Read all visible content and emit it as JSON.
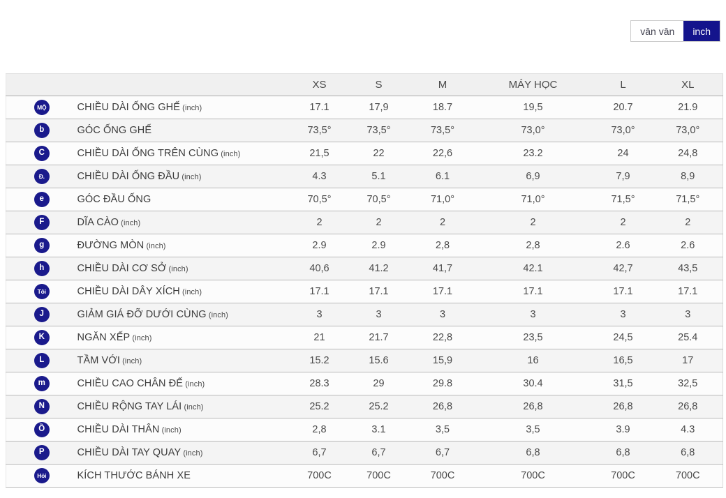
{
  "unit_toggle": {
    "options": [
      {
        "label": "vân vân",
        "selected": false
      },
      {
        "label": "inch",
        "selected": true
      }
    ]
  },
  "table": {
    "columns": [
      "XS",
      "S",
      "M",
      "MÁY HỌC",
      "L",
      "XL"
    ],
    "rows": [
      {
        "badge": "MỘ",
        "label": "CHIỀU DÀI ỐNG GHẾ",
        "unit": "(inch)",
        "values": [
          "17.1",
          "17,9",
          "18.7",
          "19,5",
          "20.7",
          "21.9"
        ]
      },
      {
        "badge": "b",
        "label": "GÓC ỐNG GHẾ",
        "unit": "",
        "values": [
          "73,5°",
          "73,5°",
          "73,5°",
          "73,0°",
          "73,0°",
          "73,0°"
        ]
      },
      {
        "badge": "C",
        "label": "CHIỀU DÀI ỐNG TRÊN CÙNG",
        "unit": "(inch)",
        "values": [
          "21,5",
          "22",
          "22,6",
          "23.2",
          "24",
          "24,8"
        ]
      },
      {
        "badge": "Đ.",
        "label": "CHIỀU DÀI ỐNG ĐẦU",
        "unit": "(inch)",
        "values": [
          "4.3",
          "5.1",
          "6.1",
          "6,9",
          "7,9",
          "8,9"
        ]
      },
      {
        "badge": "e",
        "label": "GÓC ĐẦU ỐNG",
        "unit": "",
        "values": [
          "70,5°",
          "70,5°",
          "71,0°",
          "71,0°",
          "71,5°",
          "71,5°"
        ]
      },
      {
        "badge": "F",
        "label": "DĨA CÀO",
        "unit": "(inch)",
        "values": [
          "2",
          "2",
          "2",
          "2",
          "2",
          "2"
        ]
      },
      {
        "badge": "g",
        "label": "ĐƯỜNG MÒN",
        "unit": "(inch)",
        "values": [
          "2.9",
          "2.9",
          "2,8",
          "2,8",
          "2.6",
          "2.6"
        ]
      },
      {
        "badge": "h",
        "label": "CHIỀU DÀI CƠ SỞ",
        "unit": "(inch)",
        "values": [
          "40,6",
          "41.2",
          "41,7",
          "42.1",
          "42,7",
          "43,5"
        ]
      },
      {
        "badge": "Tôi",
        "label": "CHIỀU DÀI DÂY XÍCH",
        "unit": "(inch)",
        "values": [
          "17.1",
          "17.1",
          "17.1",
          "17.1",
          "17.1",
          "17.1"
        ]
      },
      {
        "badge": "J",
        "label": "GIẢM GIÁ ĐỠ DƯỚI CÙNG",
        "unit": "(inch)",
        "values": [
          "3",
          "3",
          "3",
          "3",
          "3",
          "3"
        ]
      },
      {
        "badge": "K",
        "label": "NGĂN XẾP",
        "unit": "(inch)",
        "values": [
          "21",
          "21.7",
          "22,8",
          "23,5",
          "24,5",
          "25.4"
        ]
      },
      {
        "badge": "L",
        "label": "TẦM VỚI",
        "unit": "(inch)",
        "values": [
          "15.2",
          "15.6",
          "15,9",
          "16",
          "16,5",
          "17"
        ]
      },
      {
        "badge": "m",
        "label": "CHIỀU CAO CHÂN ĐẾ",
        "unit": "(inch)",
        "values": [
          "28.3",
          "29",
          "29.8",
          "30.4",
          "31,5",
          "32,5"
        ]
      },
      {
        "badge": "N",
        "label": "CHIỀU RỘNG TAY LÁI",
        "unit": "(inch)",
        "values": [
          "25.2",
          "25.2",
          "26,8",
          "26,8",
          "26,8",
          "26,8"
        ]
      },
      {
        "badge": "Ồ",
        "label": "CHIỀU DÀI THÂN",
        "unit": "(inch)",
        "values": [
          "2,8",
          "3.1",
          "3,5",
          "3,5",
          "3.9",
          "4.3"
        ]
      },
      {
        "badge": "P",
        "label": "CHIỀU DÀI TAY QUAY",
        "unit": "(inch)",
        "values": [
          "6,7",
          "6,7",
          "6,7",
          "6,8",
          "6,8",
          "6,8"
        ]
      },
      {
        "badge": "Hỏi",
        "label": "KÍCH THƯỚC BÁNH XE",
        "unit": "",
        "values": [
          "700C",
          "700C",
          "700C",
          "700C",
          "700C",
          "700C"
        ]
      }
    ]
  },
  "colors": {
    "accent_navy": "#14148c",
    "badge_navy": "#1a1a8c",
    "header_bg": "#f0f0f0",
    "row_alt_bg": "#f4f4f4",
    "divider": "#b9b9b9"
  }
}
